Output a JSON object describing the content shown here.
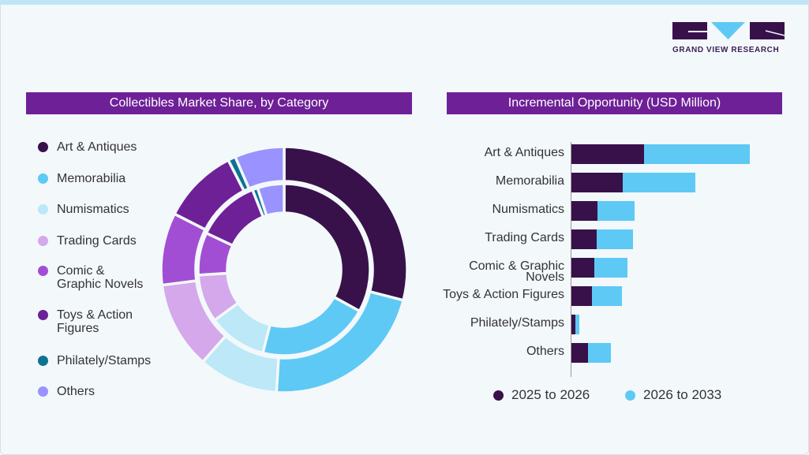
{
  "brand": {
    "name": "GRAND VIEW RESEARCH",
    "logo_letters": "GVR"
  },
  "colors": {
    "art": "#38114a",
    "memorabilia": "#5ec9f5",
    "numismatics": "#bce8f8",
    "trading": "#d4a8ea",
    "comic": "#a24ed4",
    "toys": "#6e2097",
    "stamps": "#0c7491",
    "others": "#9a92ff",
    "title_bar": "#6e2097"
  },
  "chart_data": [
    {
      "type": "pie",
      "variant": "nested-donut",
      "title": "Collectibles Market Share, by Category",
      "legend_position": "left",
      "categories": [
        "Art & Antiques",
        "Memorabilia",
        "Numismatics",
        "Trading Cards",
        "Comic & Graphic Novels",
        "Toys & Action Figures",
        "Philately/Stamps",
        "Others"
      ],
      "series": [
        {
          "ring": "outer",
          "values": [
            29,
            22,
            10.5,
            11.5,
            9.5,
            10,
            1,
            6.5
          ]
        },
        {
          "ring": "inner",
          "values": [
            33,
            21,
            11,
            9,
            8,
            12,
            1,
            5
          ]
        }
      ]
    },
    {
      "type": "bar",
      "orientation": "horizontal",
      "stacked": true,
      "title": "Incremental Opportunity (USD Million)",
      "legend_position": "bottom",
      "categories": [
        "Art & Antiques",
        "Memorabilia",
        "Numismatics",
        "Trading Cards",
        "Comic & Graphic Novels",
        "Toys & Action Figures",
        "Philately/Stamps",
        "Others"
      ],
      "series": [
        {
          "name": "2025 to 2026",
          "color": "#38114a",
          "values": [
            92,
            65,
            33,
            32,
            29,
            26,
            5,
            21
          ]
        },
        {
          "name": "2026 to 2033",
          "color": "#5ec9f5",
          "values": [
            134,
            92,
            47,
            46,
            42,
            38,
            5,
            29
          ]
        }
      ],
      "xlim": [
        0,
        230
      ]
    }
  ]
}
